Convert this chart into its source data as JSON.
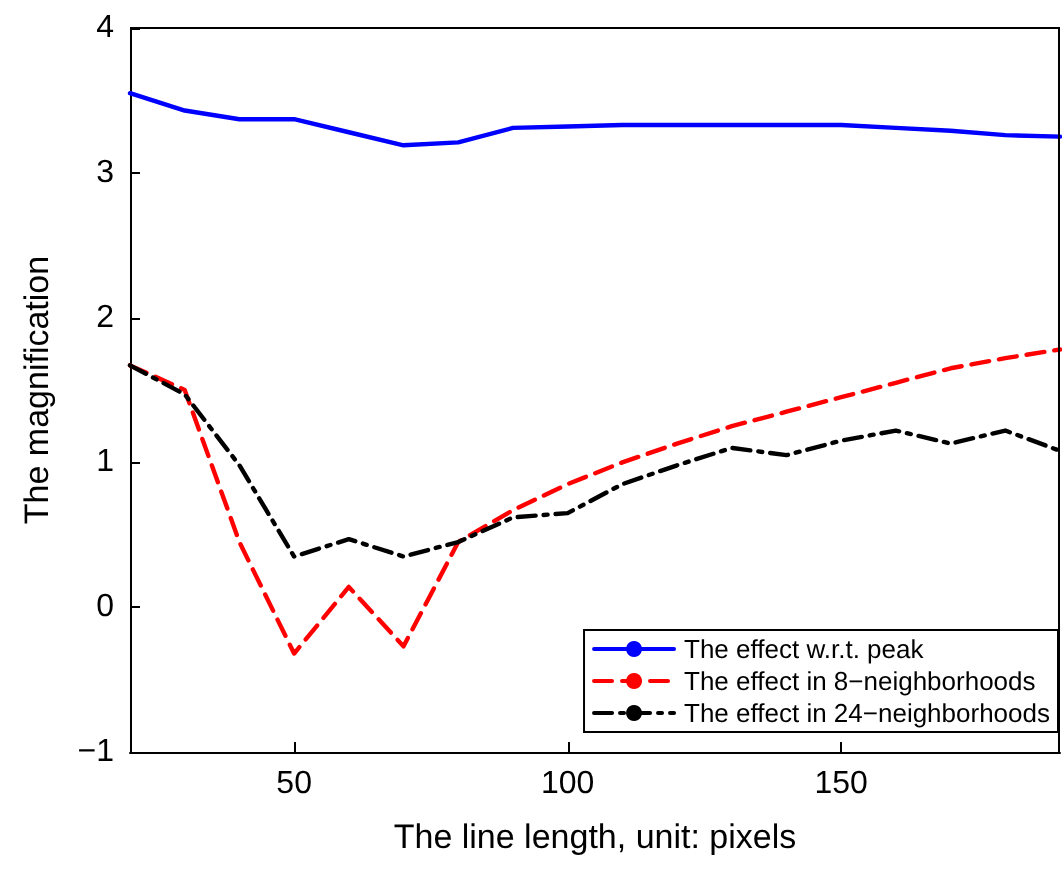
{
  "chart_data": {
    "type": "line",
    "xlabel": "The line length, unit: pixels",
    "ylabel": "The magnification",
    "x": [
      20,
      30,
      40,
      50,
      60,
      70,
      80,
      90,
      100,
      110,
      120,
      130,
      140,
      150,
      160,
      170,
      180,
      190
    ],
    "series": [
      {
        "name": "The effect w.r.t. peak",
        "color": "#0000ff",
        "line_style": "solid",
        "values": [
          3.55,
          3.43,
          3.37,
          3.37,
          3.28,
          3.19,
          3.21,
          3.31,
          3.32,
          3.33,
          3.33,
          3.33,
          3.33,
          3.33,
          3.31,
          3.29,
          3.26,
          3.25
        ]
      },
      {
        "name": "The effect in 8−neighborhoods",
        "color": "#ff0000",
        "line_style": "dashed",
        "values": [
          1.67,
          1.5,
          0.45,
          -0.32,
          0.14,
          -0.27,
          0.45,
          0.67,
          0.85,
          1.0,
          1.13,
          1.25,
          1.35,
          1.45,
          1.55,
          1.65,
          1.72,
          1.78
        ]
      },
      {
        "name": "The effect in 24−neighborhoods",
        "color": "#000000",
        "line_style": "dashdot",
        "values": [
          1.67,
          1.47,
          0.98,
          0.35,
          0.47,
          0.35,
          0.45,
          0.62,
          0.65,
          0.85,
          0.98,
          1.1,
          1.05,
          1.15,
          1.22,
          1.13,
          1.22,
          1.08
        ]
      }
    ],
    "xlim": [
      20,
      190
    ],
    "xticks": [
      50,
      100,
      150
    ],
    "ylim": [
      -1,
      4
    ],
    "yticks": [
      -1,
      0,
      1,
      2,
      3,
      4
    ],
    "grid": false,
    "legend": "bottom right",
    "marker": "none"
  }
}
